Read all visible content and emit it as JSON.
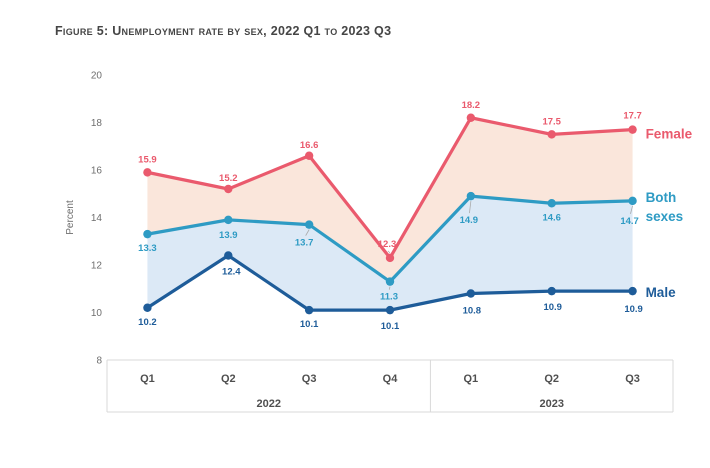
{
  "figure": {
    "title": "Figure 5: Unemployment rate by sex, 2022 Q1 to 2023 Q3"
  },
  "chart_data": {
    "type": "line",
    "title": "Figure 5: Unemployment rate by sex, 2022 Q1 to 2023 Q3",
    "xlabel": "",
    "ylabel": "Percent",
    "ylim": [
      8,
      20
    ],
    "yticks": [
      8,
      10,
      12,
      14,
      16,
      18,
      20
    ],
    "grid": false,
    "legend_position": "line-end-labels",
    "categories": [
      "Q1",
      "Q2",
      "Q3",
      "Q4",
      "Q1",
      "Q2",
      "Q3"
    ],
    "year_groups": [
      {
        "label": "2022",
        "count": 4
      },
      {
        "label": "2023",
        "count": 3
      }
    ],
    "series": [
      {
        "name": "Female",
        "end_label_lines": [
          "Female"
        ],
        "color": "#EA5A6D",
        "values": [
          15.9,
          15.2,
          16.6,
          12.3,
          18.2,
          17.5,
          17.7
        ],
        "labels_side": "above"
      },
      {
        "name": "Both sexes",
        "end_label_lines": [
          "Both",
          "sexes"
        ],
        "color": "#2E9BC4",
        "values": [
          13.3,
          13.9,
          13.7,
          11.3,
          14.9,
          14.6,
          14.7
        ],
        "labels_side": "below"
      },
      {
        "name": "Male",
        "end_label_lines": [
          "Male"
        ],
        "color": "#1E5C99",
        "values": [
          10.2,
          12.4,
          10.1,
          10.1,
          10.8,
          10.9,
          10.9
        ],
        "labels_side": "below"
      }
    ],
    "band_fills": [
      {
        "between": [
          "Female",
          "Both sexes"
        ],
        "color": "#FAE6DB"
      },
      {
        "between": [
          "Both sexes",
          "Male"
        ],
        "color": "#DCE9F6"
      }
    ],
    "colors": {
      "axis_text": "#6E6E6E",
      "category_text": "#4F4F4F",
      "axis_border": "#D9D9D9",
      "leader_line": "#AAAAAA",
      "title_text": "#454545"
    }
  }
}
